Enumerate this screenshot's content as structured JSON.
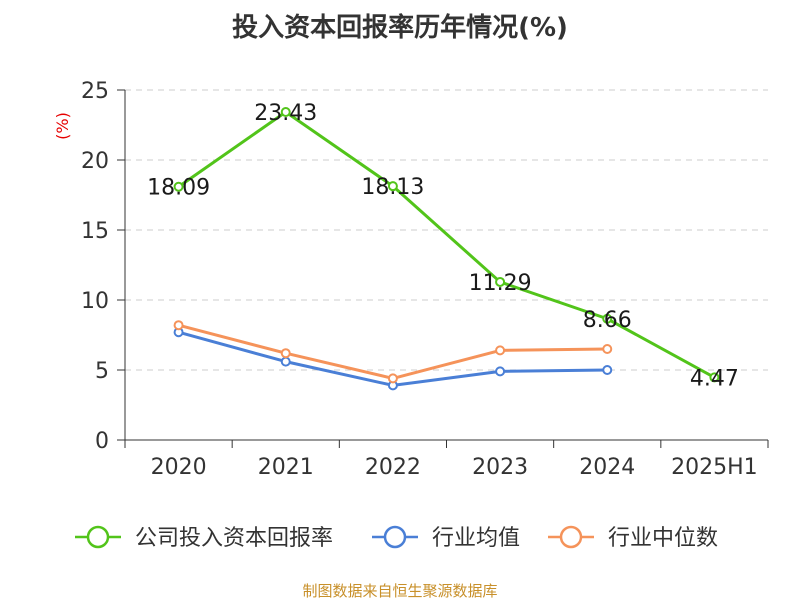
{
  "title": "投入资本回报率历年情况(%)",
  "source": "制图数据来自恒生聚源数据库",
  "chart_data": {
    "type": "line",
    "title": "投入资本回报率历年情况(%)",
    "ylabel": "(%)",
    "xlabel": "",
    "ylim": [
      0,
      25
    ],
    "yticks": [
      0,
      5,
      10,
      15,
      20,
      25
    ],
    "grid": true,
    "legend_position": "bottom",
    "categories": [
      "2020",
      "2021",
      "2022",
      "2023",
      "2024",
      "2025H1"
    ],
    "series": [
      {
        "name": "公司投入资本回报率",
        "color": "#52c41a",
        "values": [
          18.09,
          23.43,
          18.13,
          11.29,
          8.66,
          4.47
        ],
        "labels": [
          "18.09",
          "23.43",
          "18.13",
          "11.29",
          "8.66",
          "4.47"
        ]
      },
      {
        "name": "行业均值",
        "color": "#4a7fd6",
        "values": [
          7.7,
          5.6,
          3.9,
          4.9,
          5.0,
          null
        ]
      },
      {
        "name": "行业中位数",
        "color": "#f5935a",
        "values": [
          8.2,
          6.2,
          4.4,
          6.4,
          6.5,
          null
        ]
      }
    ]
  }
}
